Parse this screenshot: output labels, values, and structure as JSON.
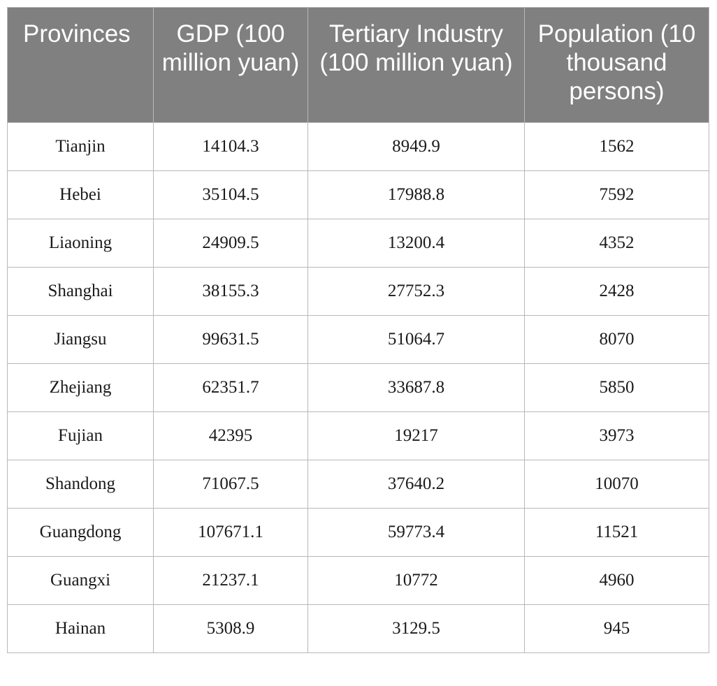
{
  "table": {
    "headers": [
      "Provinces",
      "GDP (100 million yuan)",
      "Tertiary Industry (100 million yuan)",
      "Population (10 thousand persons)"
    ],
    "rows": [
      [
        "Tianjin",
        "14104.3",
        "8949.9",
        "1562"
      ],
      [
        "Hebei",
        "35104.5",
        "17988.8",
        "7592"
      ],
      [
        "Liaoning",
        "24909.5",
        "13200.4",
        "4352"
      ],
      [
        "Shanghai",
        "38155.3",
        "27752.3",
        "2428"
      ],
      [
        "Jiangsu",
        "99631.5",
        "51064.7",
        "8070"
      ],
      [
        "Zhejiang",
        "62351.7",
        "33687.8",
        "5850"
      ],
      [
        "Fujian",
        "42395",
        "19217",
        "3973"
      ],
      [
        "Shandong",
        "71067.5",
        "37640.2",
        "10070"
      ],
      [
        "Guangdong",
        "107671.1",
        "59773.4",
        "11521"
      ],
      [
        "Guangxi",
        "21237.1",
        "10772",
        "4960"
      ],
      [
        "Hainan",
        "5308.9",
        "3129.5",
        "945"
      ]
    ]
  }
}
